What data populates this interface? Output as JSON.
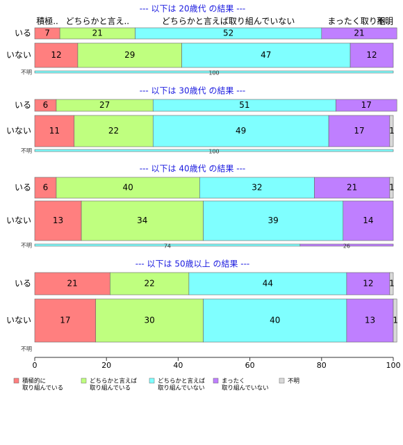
{
  "chart_data": {
    "type": "stacked-bar",
    "header_labels": [
      "積極..",
      "どちらかと言え..",
      "どちらかと言えば取り組んでいない",
      "まったく取り組..",
      "不明"
    ],
    "series": [
      {
        "name": [
          "積極的に",
          "取り組んでいる"
        ],
        "color": "#ff7f7f"
      },
      {
        "name": [
          "どちらかと言えば",
          "取り組んでいる"
        ],
        "color": "#bfff7f"
      },
      {
        "name": [
          "どちらかと言えば",
          "取り組んでいない"
        ],
        "color": "#7fffff"
      },
      {
        "name": [
          "まったく",
          "取り組んでいない"
        ],
        "color": "#bf7fff"
      },
      {
        "name": [
          "不明"
        ],
        "color": "#d9d9d9"
      }
    ],
    "panels": [
      {
        "title": "--- 以下は 20歳代 の結果 ---",
        "categories": [
          "いる",
          "いない",
          "不明"
        ],
        "values": [
          [
            7,
            21,
            52,
            21,
            null
          ],
          [
            12,
            29,
            47,
            12,
            null
          ],
          [
            null,
            null,
            100,
            null,
            null
          ]
        ]
      },
      {
        "title": "--- 以下は 30歳代 の結果 ---",
        "categories": [
          "いる",
          "いない",
          "不明"
        ],
        "values": [
          [
            6,
            27,
            51,
            17,
            null
          ],
          [
            11,
            22,
            49,
            17,
            1
          ],
          [
            null,
            null,
            100,
            null,
            null
          ]
        ]
      },
      {
        "title": "--- 以下は 40歳代 の結果 ---",
        "categories": [
          "いる",
          "いない",
          "不明"
        ],
        "values": [
          [
            6,
            40,
            32,
            21,
            1
          ],
          [
            13,
            34,
            39,
            14,
            null
          ],
          [
            null,
            null,
            74,
            26,
            null
          ]
        ]
      },
      {
        "title": "--- 以下は 50歳以上 の結果 ---",
        "categories": [
          "いる",
          "いない",
          "不明"
        ],
        "values": [
          [
            21,
            22,
            44,
            12,
            1
          ],
          [
            17,
            30,
            40,
            13,
            1
          ],
          [
            null,
            null,
            null,
            null,
            null
          ]
        ]
      }
    ],
    "xlim": [
      0,
      100
    ],
    "xticks": [
      0,
      20,
      40,
      60,
      80,
      100
    ]
  }
}
